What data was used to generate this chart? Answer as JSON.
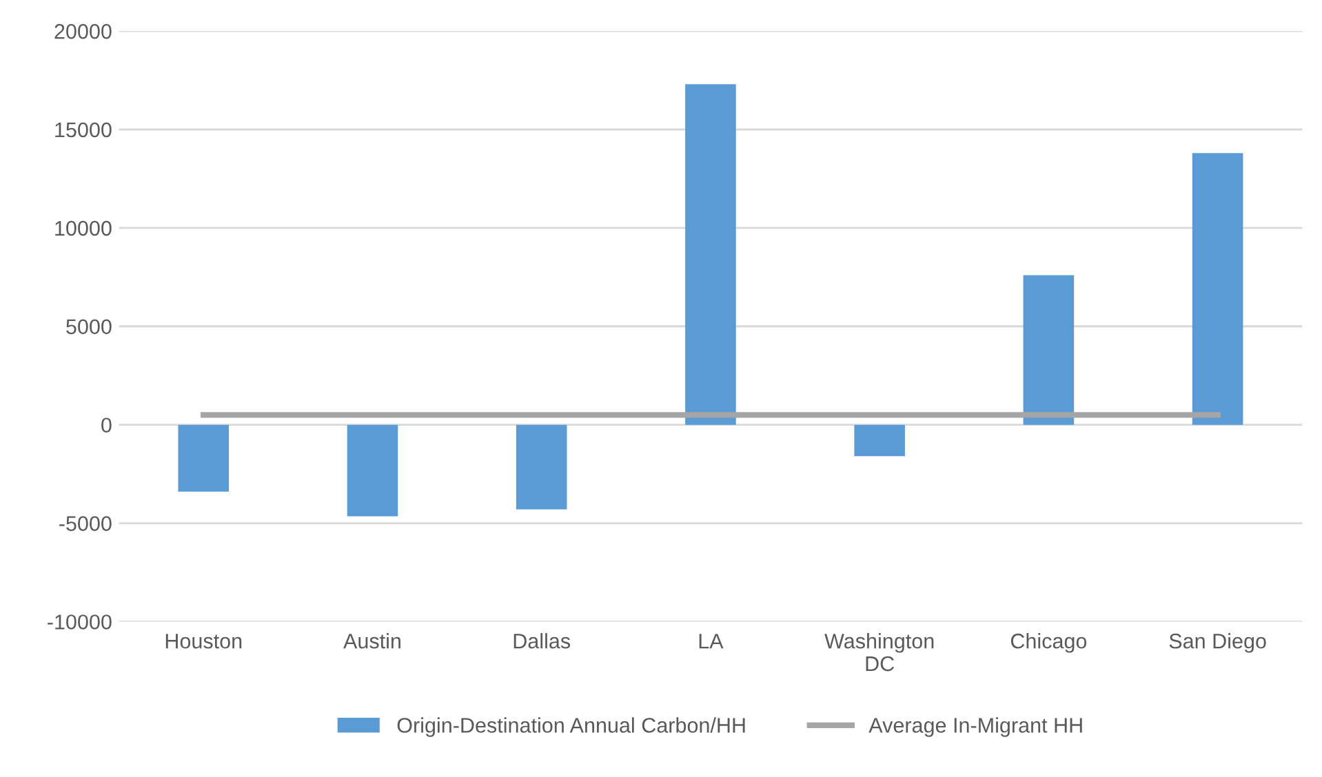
{
  "chart_data": {
    "type": "bar",
    "categories": [
      "Houston",
      "Austin",
      "Dallas",
      "LA",
      "Washington\nDC",
      "Chicago",
      "San Diego"
    ],
    "series": [
      {
        "name": "Origin-Destination Annual Carbon/HH",
        "color": "#5b9bd5",
        "values": [
          -3400,
          -4650,
          -4300,
          17300,
          -1600,
          7600,
          13800
        ]
      },
      {
        "name": "Average In-Migrant HH",
        "type": "line",
        "color": "#a5a5a5",
        "values": [
          500,
          500,
          500,
          500,
          500,
          500,
          500
        ]
      }
    ],
    "ylim": [
      -10000,
      20000
    ],
    "yticks": [
      -10000,
      -5000,
      0,
      5000,
      10000,
      15000,
      20000
    ],
    "grid": "y",
    "legend": "bottom"
  }
}
